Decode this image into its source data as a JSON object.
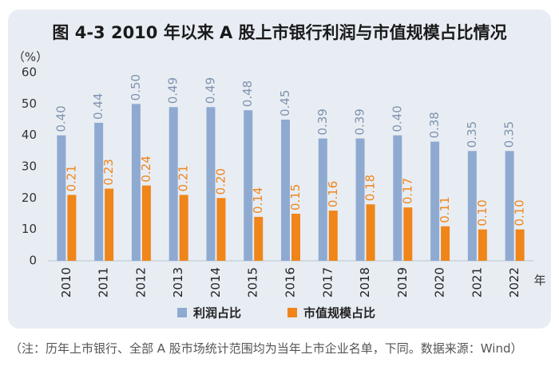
{
  "chart_data": {
    "type": "bar",
    "title": "图 4-3   2010 年以来 A 股上市银行利润与市值规模占比情况",
    "y_label": "（%）",
    "x_unit": "年",
    "categories": [
      "2010",
      "2011",
      "2012",
      "2013",
      "2014",
      "2015",
      "2016",
      "2017",
      "2018",
      "2019",
      "2020",
      "2021",
      "2022"
    ],
    "series": [
      {
        "name": "利润占比",
        "color": "#8eaad1",
        "label_color": "#7f93ad",
        "values": [
          40,
          44,
          50,
          49,
          49,
          48,
          45,
          39,
          39,
          40,
          38,
          35,
          35
        ],
        "value_labels": [
          "0.40",
          "0.44",
          "0.50",
          "0.49",
          "0.49",
          "0.48",
          "0.45",
          "0.39",
          "0.39",
          "0.40",
          "0.38",
          "0.35",
          "0.35"
        ]
      },
      {
        "name": "市值规模占比",
        "color": "#f08519",
        "label_color": "#f08519",
        "values": [
          21,
          23,
          24,
          21,
          20,
          14,
          15,
          16,
          18,
          17,
          11,
          10,
          10
        ],
        "value_labels": [
          "0.21",
          "0.23",
          "0.24",
          "0.21",
          "0.20",
          "0.14",
          "0.15",
          "0.16",
          "0.18",
          "0.17",
          "0.11",
          "0.10",
          "0.10"
        ]
      }
    ],
    "ylim": [
      0,
      60
    ],
    "yticks": [
      0,
      10,
      20,
      30,
      40,
      50,
      60
    ],
    "grid": false
  },
  "note": "（注：历年上市银行、全部 A 股市场统计范围均为当年上市企业名单，下同。数据来源：Wind）"
}
